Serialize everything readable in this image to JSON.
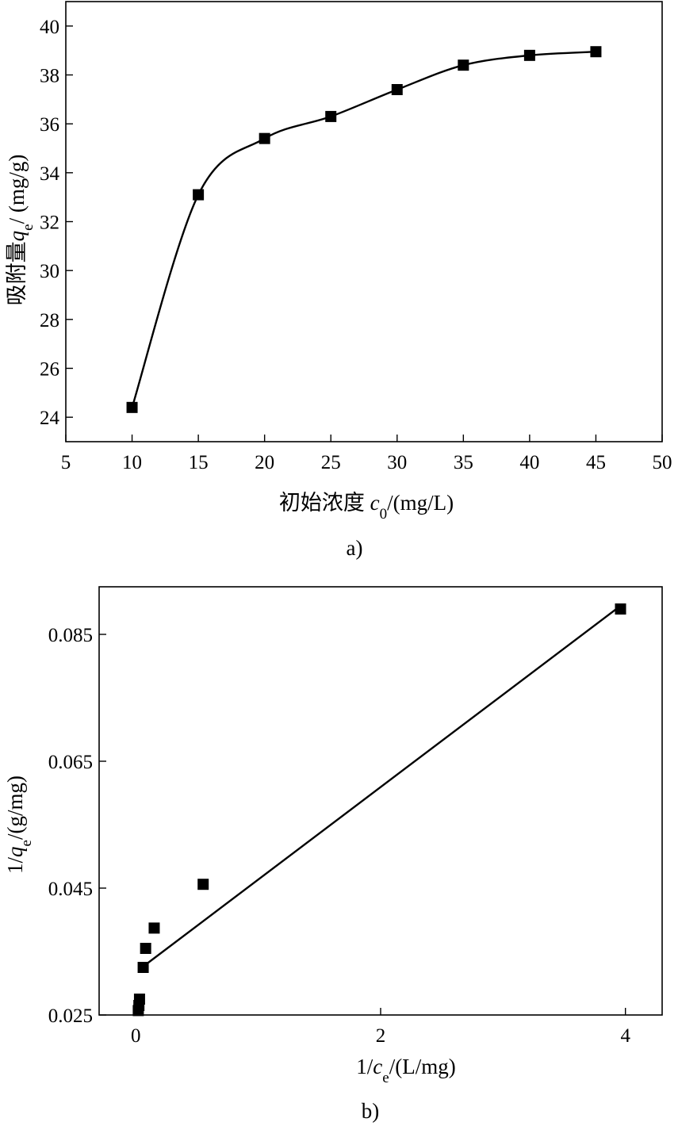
{
  "chart_data": [
    {
      "type": "line",
      "caption": "a)",
      "xlabel": {
        "prefix": "初始浓度 ",
        "var": "c",
        "sub": "0",
        "suffix": "/(mg/L)"
      },
      "ylabel": {
        "prefix": "吸附量",
        "var": "q",
        "sub": "e",
        "suffix": "/ (mg/g)"
      },
      "xlim": [
        5,
        50
      ],
      "ylim": [
        23,
        41
      ],
      "xticks": [
        "5",
        "10",
        "15",
        "20",
        "25",
        "30",
        "35",
        "40",
        "45",
        "50"
      ],
      "yticks": [
        "24",
        "26",
        "28",
        "30",
        "32",
        "34",
        "36",
        "38",
        "40"
      ],
      "grid": false,
      "series": [
        {
          "x": [
            10,
            15,
            20,
            25,
            30,
            35,
            40,
            45
          ],
          "y": [
            24.4,
            33.1,
            35.4,
            36.3,
            37.4,
            38.4,
            38.8,
            38.95
          ],
          "marker": "square",
          "smooth": true
        }
      ]
    },
    {
      "type": "scatter",
      "caption": "b)",
      "xlabel": {
        "prefix": "1/",
        "var": "c",
        "sub": "e",
        "suffix": "/(L/mg)"
      },
      "ylabel": {
        "prefix": "1/",
        "var": "q",
        "sub": "e",
        "suffix": "/(g/mg)"
      },
      "xlim": [
        -0.3,
        4.3
      ],
      "ylim": [
        0.025,
        0.0925
      ],
      "xticks": [
        "0",
        "2",
        "4"
      ],
      "yticks": [
        "0.025",
        "0.045",
        "0.065",
        "0.085"
      ],
      "grid": false,
      "series": [
        {
          "x": [
            3.96,
            0.55,
            0.15,
            0.08,
            0.06,
            0.03,
            0.025,
            0.02
          ],
          "y": [
            0.089,
            0.0456,
            0.0387,
            0.0355,
            0.0325,
            0.0275,
            0.0265,
            0.0257
          ],
          "marker": "square"
        }
      ],
      "fit_line": {
        "x": [
          0.05,
          3.96
        ],
        "y": [
          0.0325,
          0.0895
        ]
      }
    }
  ]
}
